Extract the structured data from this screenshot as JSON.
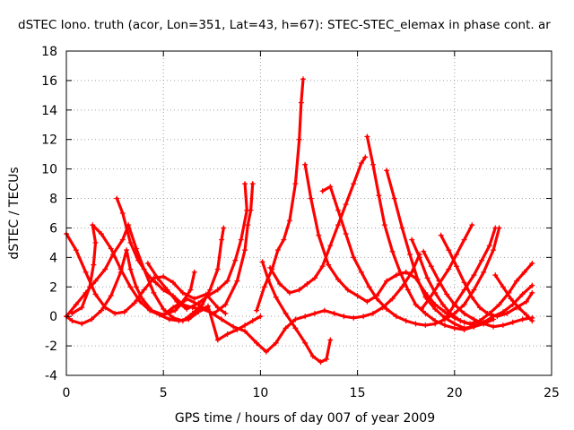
{
  "chart_data": {
    "type": "scatter",
    "title": "dSTEC Iono. truth (acor, Lon=351, Lat=43, h=67): STEC-STEC_elemax in phase cont. ar",
    "xlabel": "GPS time / hours of day 007 of year 2009",
    "ylabel": "dSTEC  / TECUs",
    "xlim": [
      0,
      25
    ],
    "ylim": [
      -4,
      18
    ],
    "xticks": [
      "0",
      "5",
      "10",
      "15",
      "20",
      "25"
    ],
    "yticks": [
      "-4",
      "-2",
      "0",
      "2",
      "4",
      "6",
      "8",
      "10",
      "12",
      "14",
      "16",
      "18"
    ],
    "grid": true,
    "marker": "+",
    "color": "#ff0000",
    "series": [
      {
        "points": [
          [
            0,
            5.6
          ],
          [
            0.5,
            4.5
          ],
          [
            1,
            3
          ],
          [
            1.5,
            1.5
          ],
          [
            2,
            0.6
          ],
          [
            2.5,
            0.2
          ],
          [
            3,
            0.3
          ],
          [
            3.5,
            0.9
          ],
          [
            4,
            1.8
          ],
          [
            4.5,
            2.6
          ],
          [
            5,
            2.7
          ],
          [
            5.5,
            2.3
          ],
          [
            6,
            1.6
          ],
          [
            6.6,
            1.2
          ],
          [
            7.2,
            1.5
          ],
          [
            7.8,
            0.6
          ],
          [
            8.2,
            0.2
          ]
        ]
      },
      {
        "points": [
          [
            0,
            0
          ],
          [
            0.3,
            -0.3
          ],
          [
            0.8,
            -0.5
          ],
          [
            1.3,
            -0.2
          ],
          [
            1.8,
            0.4
          ],
          [
            2.3,
            1.4
          ],
          [
            2.8,
            3
          ],
          [
            3.1,
            4.5
          ],
          [
            3.3,
            3.2
          ],
          [
            3.6,
            2
          ],
          [
            3.9,
            1.2
          ],
          [
            4.4,
            0.4
          ],
          [
            5,
            0.1
          ],
          [
            5.5,
            0.6
          ],
          [
            6,
            1
          ],
          [
            6.4,
            1.8
          ],
          [
            6.6,
            3
          ]
        ]
      },
      {
        "points": [
          [
            0,
            0
          ],
          [
            0.5,
            0.8
          ],
          [
            1,
            1.6
          ],
          [
            1.5,
            2.4
          ],
          [
            2,
            3.2
          ],
          [
            2.4,
            4.2
          ],
          [
            2.9,
            5.2
          ],
          [
            3.2,
            6.2
          ],
          [
            3.6,
            4.6
          ],
          [
            4,
            3.2
          ],
          [
            4.5,
            1.6
          ],
          [
            5,
            0.5
          ],
          [
            5.5,
            -0.1
          ],
          [
            6,
            -0.3
          ],
          [
            6.5,
            0.2
          ],
          [
            7,
            0.8
          ],
          [
            7.4,
            1.8
          ],
          [
            7.8,
            3.2
          ],
          [
            8,
            5.2
          ],
          [
            8.1,
            6
          ]
        ]
      },
      {
        "points": [
          [
            0.3,
            0.2
          ],
          [
            0.8,
            0.6
          ],
          [
            1.2,
            2
          ],
          [
            1.4,
            3.5
          ],
          [
            1.5,
            5
          ],
          [
            1.35,
            6.2
          ],
          [
            1.8,
            5.6
          ],
          [
            2.3,
            4.6
          ],
          [
            2.8,
            3.2
          ],
          [
            3.3,
            2
          ],
          [
            3.8,
            1
          ],
          [
            4.3,
            0.4
          ],
          [
            4.8,
            0.1
          ],
          [
            5.3,
            -0.2
          ],
          [
            5.8,
            -0.3
          ],
          [
            6.3,
            -0.2
          ],
          [
            6.8,
            0.3
          ],
          [
            7.3,
            0.7
          ],
          [
            7.8,
            -1.6
          ],
          [
            8.3,
            -1.2
          ],
          [
            8.8,
            -0.9
          ],
          [
            9.2,
            -0.6
          ],
          [
            9.6,
            -0.3
          ],
          [
            10,
            0
          ]
        ]
      },
      {
        "points": [
          [
            2.6,
            8
          ],
          [
            2.9,
            7
          ],
          [
            3.3,
            5
          ],
          [
            3.7,
            3.8
          ],
          [
            4.2,
            2.8
          ],
          [
            4.6,
            2.3
          ],
          [
            5,
            1.8
          ],
          [
            5.5,
            1.4
          ],
          [
            6,
            0.8
          ],
          [
            6.5,
            0.6
          ],
          [
            7,
            0.5
          ],
          [
            7.6,
            0.2
          ],
          [
            8.2,
            0.8
          ],
          [
            8.8,
            2.4
          ],
          [
            9.2,
            4.5
          ],
          [
            9.35,
            6.2
          ],
          [
            9.5,
            7.2
          ],
          [
            9.6,
            9
          ]
        ]
      },
      {
        "points": [
          [
            4.2,
            3.6
          ],
          [
            4.7,
            2.6
          ],
          [
            5.2,
            1.8
          ],
          [
            5.7,
            1
          ],
          [
            6.2,
            0.5
          ],
          [
            6.8,
            0.9
          ],
          [
            7.3,
            1.4
          ],
          [
            7.8,
            1.8
          ],
          [
            8.3,
            2.4
          ],
          [
            8.7,
            3.8
          ],
          [
            9,
            5.2
          ],
          [
            9.3,
            7.2
          ],
          [
            9.2,
            9
          ]
        ]
      },
      {
        "points": [
          [
            5,
            0.1
          ],
          [
            5.6,
            0.4
          ],
          [
            6.2,
            1.2
          ],
          [
            6.8,
            0.8
          ],
          [
            7.4,
            0.3
          ],
          [
            8,
            -0.2
          ],
          [
            8.6,
            -0.7
          ],
          [
            9.2,
            -1
          ],
          [
            9.8,
            -1.8
          ],
          [
            10.3,
            -2.4
          ],
          [
            10.8,
            -1.8
          ],
          [
            11.3,
            -0.8
          ],
          [
            11.8,
            -0.2
          ],
          [
            12.3,
            0
          ],
          [
            12.8,
            0.2
          ],
          [
            13.3,
            0.4
          ],
          [
            13.8,
            0.2
          ],
          [
            14.3,
            0
          ],
          [
            14.8,
            -0.1
          ],
          [
            15.3,
            0
          ],
          [
            15.8,
            0.2
          ],
          [
            16.3,
            0.6
          ],
          [
            16.8,
            1.2
          ],
          [
            17.3,
            2
          ],
          [
            17.8,
            3
          ],
          [
            18.2,
            4.2
          ]
        ]
      },
      {
        "points": [
          [
            9.8,
            0.4
          ],
          [
            10.2,
            2
          ],
          [
            10.6,
            3.2
          ],
          [
            10.9,
            4.5
          ],
          [
            11.2,
            5.2
          ],
          [
            11.5,
            6.5
          ],
          [
            11.8,
            9
          ],
          [
            12,
            12
          ],
          [
            12.1,
            14.5
          ],
          [
            12.2,
            16.1
          ]
        ]
      },
      {
        "points": [
          [
            10.1,
            3.7
          ],
          [
            10.4,
            2.5
          ],
          [
            10.8,
            1.3
          ],
          [
            11.3,
            0.2
          ],
          [
            11.8,
            -0.8
          ],
          [
            12.3,
            -1.8
          ],
          [
            12.7,
            -2.7
          ],
          [
            13.1,
            -3.1
          ],
          [
            13.4,
            -2.9
          ],
          [
            13.6,
            -1.6
          ]
        ]
      },
      {
        "points": [
          [
            10.5,
            3.3
          ],
          [
            11,
            2.2
          ],
          [
            11.5,
            1.6
          ],
          [
            12,
            1.8
          ],
          [
            12.4,
            2.2
          ],
          [
            12.8,
            2.6
          ],
          [
            13.2,
            3.4
          ],
          [
            13.6,
            4.8
          ],
          [
            14,
            6.2
          ],
          [
            14.4,
            7.6
          ],
          [
            14.8,
            9
          ],
          [
            15.2,
            10.4
          ],
          [
            15.4,
            10.8
          ]
        ]
      },
      {
        "points": [
          [
            12.3,
            10.3
          ],
          [
            12.6,
            8
          ],
          [
            13,
            5.5
          ],
          [
            13.5,
            3.5
          ],
          [
            14,
            2.5
          ],
          [
            14.5,
            1.8
          ],
          [
            15,
            1.4
          ],
          [
            15.5,
            1
          ],
          [
            16,
            1.4
          ],
          [
            16.5,
            2.4
          ],
          [
            17,
            2.8
          ],
          [
            17.5,
            3
          ],
          [
            18,
            2.6
          ],
          [
            18.5,
            1.6
          ],
          [
            19,
            0.8
          ],
          [
            19.5,
            0.3
          ],
          [
            20,
            -0.1
          ],
          [
            20.5,
            -0.4
          ],
          [
            21,
            -0.6
          ],
          [
            21.5,
            -0.4
          ]
        ]
      },
      {
        "points": [
          [
            13.2,
            8.5
          ],
          [
            13.6,
            8.8
          ],
          [
            14,
            7.2
          ],
          [
            14.4,
            5.6
          ],
          [
            14.8,
            4
          ],
          [
            15.2,
            3
          ],
          [
            15.6,
            2
          ],
          [
            16,
            1.2
          ],
          [
            16.5,
            0.5
          ],
          [
            17,
            0
          ],
          [
            17.5,
            -0.3
          ],
          [
            18,
            -0.5
          ],
          [
            18.5,
            -0.6
          ],
          [
            19,
            -0.5
          ],
          [
            19.5,
            -0.2
          ],
          [
            20,
            0.2
          ],
          [
            20.5,
            0.8
          ],
          [
            21,
            1.8
          ],
          [
            21.5,
            3
          ],
          [
            22,
            4.5
          ],
          [
            22.3,
            6
          ]
        ]
      },
      {
        "points": [
          [
            15.5,
            12.2
          ],
          [
            15.8,
            10.3
          ],
          [
            16.1,
            8.2
          ],
          [
            16.4,
            6.2
          ],
          [
            16.8,
            4.4
          ],
          [
            17.2,
            3
          ],
          [
            17.6,
            1.8
          ],
          [
            18,
            0.8
          ],
          [
            18.5,
            0.2
          ],
          [
            19,
            -0.3
          ],
          [
            19.5,
            -0.6
          ],
          [
            20,
            -0.8
          ],
          [
            20.5,
            -0.9
          ],
          [
            21,
            -0.7
          ],
          [
            21.5,
            -0.5
          ],
          [
            22,
            -0.2
          ]
        ]
      },
      {
        "points": [
          [
            16.5,
            9.9
          ],
          [
            16.9,
            8
          ],
          [
            17.3,
            6
          ],
          [
            17.7,
            4.2
          ],
          [
            18.1,
            2.5
          ],
          [
            18.5,
            1.3
          ],
          [
            19,
            0.5
          ],
          [
            19.5,
            -0.1
          ],
          [
            20,
            -0.5
          ],
          [
            20.5,
            -0.8
          ],
          [
            21,
            -0.7
          ],
          [
            21.5,
            -0.4
          ],
          [
            22,
            0
          ],
          [
            22.5,
            0.3
          ],
          [
            23,
            0.8
          ],
          [
            23.5,
            1.5
          ],
          [
            24,
            2.1
          ]
        ]
      },
      {
        "points": [
          [
            17.8,
            5.2
          ],
          [
            18.2,
            4
          ],
          [
            18.6,
            2.6
          ],
          [
            19,
            1.6
          ],
          [
            19.4,
            0.8
          ],
          [
            19.8,
            0.2
          ],
          [
            20.3,
            -0.3
          ],
          [
            20.8,
            -0.5
          ],
          [
            21.3,
            -0.3
          ],
          [
            21.8,
            0.2
          ],
          [
            22.3,
            0.8
          ],
          [
            22.8,
            1.6
          ],
          [
            23.2,
            2.4
          ],
          [
            23.6,
            3
          ],
          [
            24,
            3.6
          ]
        ]
      },
      {
        "points": [
          [
            18.4,
            4.4
          ],
          [
            18.8,
            3.4
          ],
          [
            19.2,
            2.4
          ],
          [
            19.6,
            1.5
          ],
          [
            20,
            0.8
          ],
          [
            20.5,
            0.2
          ],
          [
            21,
            -0.2
          ],
          [
            21.5,
            -0.5
          ],
          [
            22,
            -0.7
          ],
          [
            22.5,
            -0.6
          ],
          [
            23,
            -0.4
          ],
          [
            23.5,
            -0.2
          ],
          [
            24,
            -0.1
          ]
        ]
      },
      {
        "points": [
          [
            19.3,
            5.5
          ],
          [
            19.7,
            4.5
          ],
          [
            20.1,
            3.4
          ],
          [
            20.5,
            2.3
          ],
          [
            20.9,
            1.3
          ],
          [
            21.3,
            0.6
          ],
          [
            21.7,
            0.2
          ],
          [
            22.2,
            0
          ],
          [
            22.7,
            0.2
          ],
          [
            23.2,
            0.6
          ],
          [
            23.7,
            1
          ],
          [
            24,
            1.6
          ]
        ]
      },
      {
        "points": [
          [
            18.3,
            0.5
          ],
          [
            18.7,
            1.2
          ],
          [
            19.2,
            2.2
          ],
          [
            19.7,
            3.2
          ],
          [
            20.1,
            4.2
          ],
          [
            20.5,
            5.2
          ],
          [
            20.9,
            6.2
          ]
        ]
      },
      {
        "points": [
          [
            19.6,
            0
          ],
          [
            20,
            0.8
          ],
          [
            20.5,
            1.8
          ],
          [
            21,
            2.8
          ],
          [
            21.4,
            3.8
          ],
          [
            21.8,
            4.8
          ],
          [
            22.1,
            6
          ]
        ]
      },
      {
        "points": [
          [
            22.1,
            2.8
          ],
          [
            22.5,
            2
          ],
          [
            22.9,
            1.2
          ],
          [
            23.3,
            0.6
          ],
          [
            23.7,
            0.1
          ],
          [
            24,
            -0.3
          ]
        ]
      }
    ]
  }
}
